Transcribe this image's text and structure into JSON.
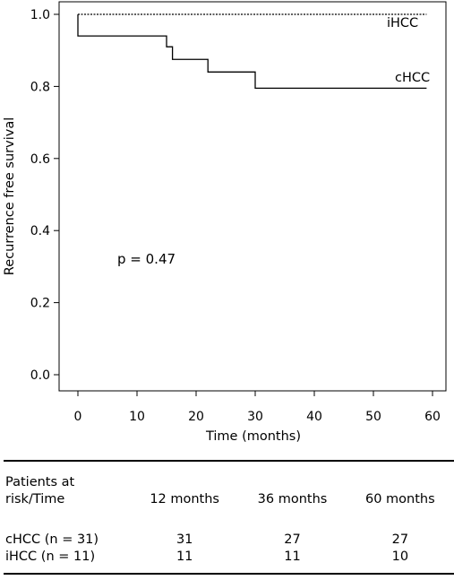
{
  "chart_data": {
    "type": "line",
    "step": true,
    "title": "",
    "xlabel": "Time (months)",
    "ylabel": "Recurrence free survival",
    "xlim": [
      0,
      60
    ],
    "ylim": [
      0,
      1
    ],
    "x_ticks": [
      "0",
      "10",
      "20",
      "30",
      "40",
      "50",
      "60"
    ],
    "y_ticks": [
      "0.0",
      "0.2",
      "0.4",
      "0.6",
      "0.8",
      "1.0"
    ],
    "grid": false,
    "legend": "none",
    "annotation": "p = 0.47",
    "series": [
      {
        "name": "iHCC",
        "style": "dotted",
        "x": [
          0,
          59
        ],
        "y": [
          1.0,
          1.0
        ]
      },
      {
        "name": "cHCC",
        "style": "solid",
        "x": [
          0,
          0,
          14,
          15,
          16,
          22,
          30,
          59
        ],
        "y": [
          1.0,
          0.94,
          0.94,
          0.91,
          0.875,
          0.84,
          0.795,
          0.795
        ]
      }
    ]
  },
  "risk_table": {
    "header_line1": "Patients at",
    "header_line2": "risk/Time",
    "columns": [
      "12 months",
      "36 months",
      "60 months"
    ],
    "rows": [
      {
        "label": "cHCC (n = 31)",
        "values": [
          "31",
          "27",
          "27"
        ]
      },
      {
        "label": "iHCC (n = 11)",
        "values": [
          "11",
          "11",
          "10"
        ]
      }
    ]
  }
}
